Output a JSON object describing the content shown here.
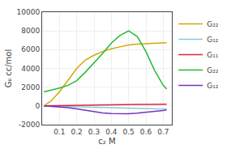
{
  "chart_data": {
    "type": "line",
    "xlabel": "c₂ M",
    "ylabel": "Gᵢᵢ cc/mol",
    "xlim": [
      0.0,
      0.75
    ],
    "ylim": [
      -2000,
      10000
    ],
    "xticks": [
      0.1,
      0.2,
      0.3,
      0.4,
      0.5,
      0.6,
      0.7
    ],
    "yticks": [
      -2000,
      0,
      2000,
      4000,
      6000,
      8000,
      10000
    ],
    "grid": true,
    "legend": "upper right",
    "x": [
      0.01,
      0.05,
      0.1,
      0.15,
      0.2,
      0.25,
      0.3,
      0.35,
      0.4,
      0.45,
      0.5,
      0.55,
      0.6,
      0.65,
      0.7,
      0.72
    ],
    "series": [
      {
        "name": "G₂₂",
        "color": "#d4a800",
        "values": [
          0,
          500,
          1500,
          2800,
          4000,
          4900,
          5400,
          5800,
          6100,
          6300,
          6500,
          6600,
          6650,
          6700,
          6750,
          6750
        ]
      },
      {
        "name": "G₁₂",
        "color": "#88ccdd",
        "values": [
          0,
          -10,
          -30,
          -60,
          -90,
          -120,
          -150,
          -170,
          -190,
          -210,
          -220,
          -230,
          -240,
          -260,
          -310,
          -340
        ]
      },
      {
        "name": "G₁₁",
        "color": "#dd2244",
        "values": [
          0,
          15,
          40,
          65,
          85,
          100,
          115,
          125,
          135,
          145,
          150,
          155,
          160,
          165,
          170,
          175
        ]
      },
      {
        "name": "G₂₂",
        "color": "#22bb33",
        "values": [
          1500,
          1650,
          1900,
          2200,
          2700,
          3600,
          4600,
          5600,
          6700,
          7500,
          8000,
          7400,
          5800,
          3800,
          2200,
          1800
        ]
      },
      {
        "name": "G₁₂",
        "color": "#7733bb",
        "values": [
          0,
          -40,
          -90,
          -180,
          -320,
          -480,
          -630,
          -740,
          -810,
          -840,
          -830,
          -780,
          -700,
          -580,
          -480,
          -430
        ]
      }
    ]
  }
}
